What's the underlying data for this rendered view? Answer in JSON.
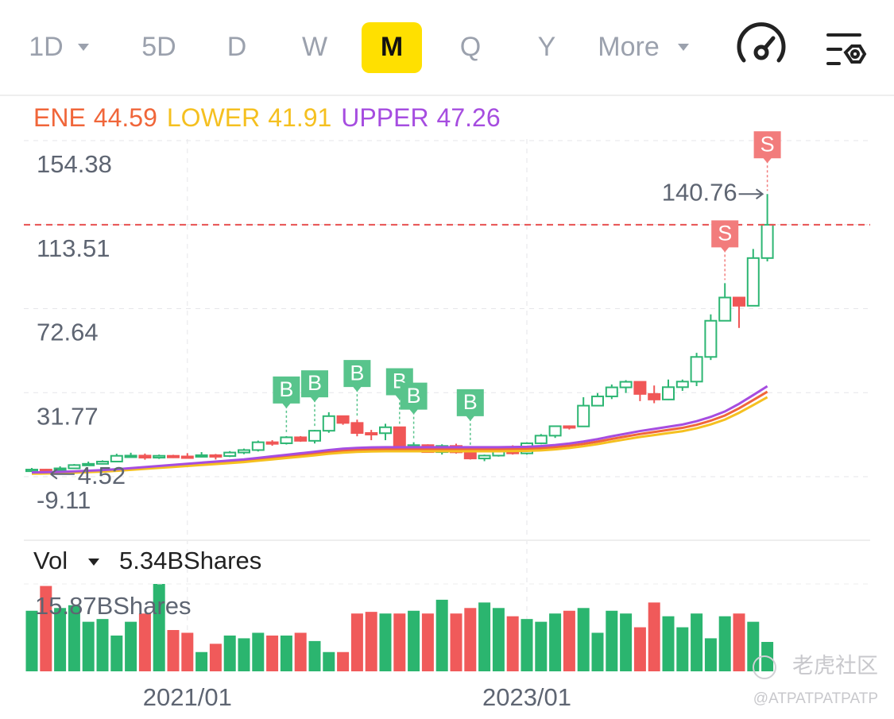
{
  "toolbar": {
    "tabs": [
      "1D",
      "5D",
      "D",
      "W",
      "M",
      "Q",
      "Y",
      "More"
    ],
    "active": 4
  },
  "chart_data": {
    "type": "candlestick",
    "categories": [
      null,
      null,
      null,
      null,
      null,
      null,
      null,
      null,
      null,
      null,
      null,
      "2021/01",
      null,
      null,
      null,
      null,
      null,
      null,
      null,
      null,
      null,
      null,
      null,
      null,
      null,
      null,
      null,
      null,
      null,
      null,
      null,
      null,
      null,
      null,
      null,
      "2023/01",
      null,
      null,
      null,
      null,
      null,
      null,
      null,
      null,
      null,
      null,
      null,
      null,
      null,
      null,
      null,
      null,
      null
    ],
    "open": [
      5.9,
      6.7,
      6.6,
      7.3,
      8.9,
      9.5,
      10.6,
      13.4,
      13.5,
      12.5,
      13.4,
      13.1,
      13.0,
      13.7,
      13.3,
      15.0,
      16.2,
      20.0,
      19.5,
      22.4,
      20.7,
      25.6,
      32.7,
      29.4,
      24.5,
      24.4,
      27.3,
      18.5,
      18.6,
      15.2,
      18.2,
      15.1,
      12.1,
      13.5,
      16.9,
      14.6,
      19.5,
      23.2,
      27.8,
      27.7,
      37.8,
      42.3,
      46.7,
      49.4,
      43.5,
      40.8,
      46.8,
      49.5,
      61.5,
      79.1,
      90.4,
      86.4,
      109.6
    ],
    "high": [
      7.5,
      7.0,
      8.3,
      9.4,
      10.6,
      11.2,
      14.4,
      14.9,
      14.5,
      14.0,
      13.9,
      14.7,
      15.2,
      14.3,
      15.7,
      16.9,
      20.8,
      21.0,
      23.0,
      23.0,
      26.0,
      34.6,
      33.0,
      31.0,
      26.0,
      29.0,
      27.0,
      20.0,
      19.0,
      19.0,
      19.3,
      16.8,
      14.0,
      17.0,
      18.5,
      20.0,
      24.0,
      28.0,
      28.2,
      41.9,
      43.9,
      48.1,
      50.2,
      49.1,
      47.6,
      50.5,
      50.5,
      63.5,
      82.2,
      97.4,
      90.0,
      114.0,
      140.76
    ],
    "low": [
      5.8,
      4.52,
      6.3,
      7.1,
      8.5,
      9.2,
      10.5,
      12.7,
      11.5,
      11.9,
      12.3,
      12.0,
      12.6,
      11.6,
      12.8,
      14.2,
      15.5,
      18.3,
      18.9,
      20.2,
      19.4,
      24.6,
      28.5,
      22.9,
      21.0,
      21.0,
      18.5,
      16.5,
      15.0,
      14.0,
      14.5,
      11.6,
      10.8,
      13.0,
      14.0,
      14.0,
      19.0,
      22.1,
      26.2,
      27.4,
      37.5,
      41.0,
      44.0,
      40.0,
      39.0,
      40.5,
      45.0,
      47.3,
      60.0,
      79.0,
      75.6,
      86.3,
      108.0
    ],
    "close": [
      6.7,
      6.6,
      7.3,
      8.9,
      9.5,
      10.6,
      13.4,
      13.5,
      12.5,
      13.4,
      13.1,
      13.0,
      13.7,
      13.3,
      15.0,
      16.2,
      20.0,
      19.5,
      22.4,
      20.7,
      25.6,
      32.7,
      29.4,
      24.5,
      24.4,
      27.3,
      18.5,
      18.6,
      15.2,
      18.2,
      15.1,
      12.1,
      13.5,
      16.9,
      14.6,
      19.5,
      23.2,
      27.8,
      27.7,
      37.8,
      42.3,
      46.7,
      49.4,
      43.5,
      40.8,
      46.8,
      49.5,
      61.5,
      79.1,
      90.4,
      86.4,
      109.6,
      125.8
    ],
    "up_color": "#2db673",
    "down_color": "#f05656",
    "ylim": [
      -26.9,
      167.5
    ],
    "yticks": [
      154.38,
      113.51,
      72.64,
      31.77,
      -9.11
    ],
    "series": [
      {
        "name": "ENE",
        "color": "#f0663a",
        "values": [
          5.0,
          5.1,
          5.3,
          5.5,
          5.8,
          6.1,
          6.5,
          7.0,
          7.5,
          8.0,
          8.5,
          9.0,
          9.5,
          10.0,
          10.5,
          11.0,
          11.7,
          12.4,
          13.1,
          13.8,
          14.5,
          15.3,
          15.9,
          16.3,
          16.5,
          16.6,
          16.6,
          16.6,
          16.6,
          16.6,
          16.6,
          16.6,
          16.6,
          16.6,
          16.7,
          16.8,
          17.1,
          17.6,
          18.3,
          19.2,
          20.3,
          21.6,
          22.8,
          24.0,
          25.0,
          26.0,
          27.0,
          28.5,
          30.5,
          33.0,
          36.5,
          40.5,
          44.59
        ]
      },
      {
        "name": "LOWER",
        "color": "#f5c020",
        "values": [
          4.7,
          4.79,
          4.98,
          5.17,
          5.45,
          5.73,
          6.11,
          6.58,
          7.05,
          7.52,
          7.99,
          8.46,
          8.93,
          9.4,
          9.87,
          10.34,
          11.0,
          11.66,
          12.31,
          12.97,
          13.63,
          14.38,
          14.95,
          15.32,
          15.51,
          15.6,
          15.6,
          15.6,
          15.6,
          15.6,
          15.6,
          15.6,
          15.6,
          15.6,
          15.7,
          15.79,
          16.07,
          16.54,
          17.2,
          18.05,
          19.08,
          20.3,
          21.43,
          22.56,
          23.5,
          24.44,
          25.38,
          26.79,
          28.67,
          31.02,
          34.31,
          38.07,
          41.91
        ]
      },
      {
        "name": "UPPER",
        "color": "#a64de0",
        "values": [
          5.3,
          5.41,
          5.62,
          5.83,
          6.15,
          6.47,
          6.89,
          7.42,
          7.95,
          8.48,
          9.01,
          9.54,
          10.07,
          10.6,
          11.13,
          11.66,
          12.4,
          13.14,
          13.89,
          14.63,
          15.37,
          16.22,
          16.85,
          17.28,
          17.49,
          17.6,
          17.6,
          17.6,
          17.6,
          17.6,
          17.6,
          17.6,
          17.6,
          17.6,
          17.7,
          17.81,
          18.13,
          18.66,
          19.4,
          20.35,
          21.52,
          22.9,
          24.17,
          25.44,
          26.5,
          27.56,
          28.62,
          30.21,
          32.33,
          34.98,
          38.69,
          42.93,
          47.26
        ]
      }
    ],
    "signals": [
      null,
      null,
      null,
      null,
      null,
      null,
      null,
      null,
      null,
      null,
      null,
      null,
      null,
      null,
      null,
      null,
      null,
      null,
      "B",
      null,
      "B",
      null,
      null,
      "B",
      null,
      null,
      "B",
      "B",
      null,
      null,
      null,
      "B",
      null,
      null,
      null,
      null,
      null,
      null,
      null,
      null,
      null,
      null,
      null,
      null,
      null,
      null,
      null,
      null,
      null,
      "S",
      null,
      null,
      "S"
    ],
    "volume": {
      "label": "Vol",
      "current": {
        "value": 5.34,
        "label": "5.34BShares"
      },
      "ylim": [
        0,
        15.87
      ],
      "yticks": [
        {
          "value": 15.87,
          "label": "15.87BShares"
        }
      ],
      "values": [
        11.0,
        15.5,
        11.5,
        12.0,
        9.0,
        9.5,
        6.5,
        9.0,
        10.5,
        15.87,
        7.5,
        7.0,
        3.5,
        5.0,
        6.5,
        6.0,
        7.0,
        6.5,
        6.5,
        7.0,
        5.5,
        3.5,
        3.5,
        10.5,
        10.8,
        10.5,
        10.5,
        11.0,
        10.5,
        13.0,
        10.5,
        11.5,
        12.5,
        11.5,
        10.0,
        9.5,
        9.0,
        10.5,
        11.0,
        11.5,
        7.0,
        11.0,
        10.5,
        8.0,
        12.5,
        10.0,
        8.0,
        10.5,
        6.0,
        10.0,
        10.5,
        9.0,
        5.34
      ]
    }
  },
  "watermark": {
    "logo": "老虎社区",
    "handle": "@ATPATPATPATP"
  }
}
